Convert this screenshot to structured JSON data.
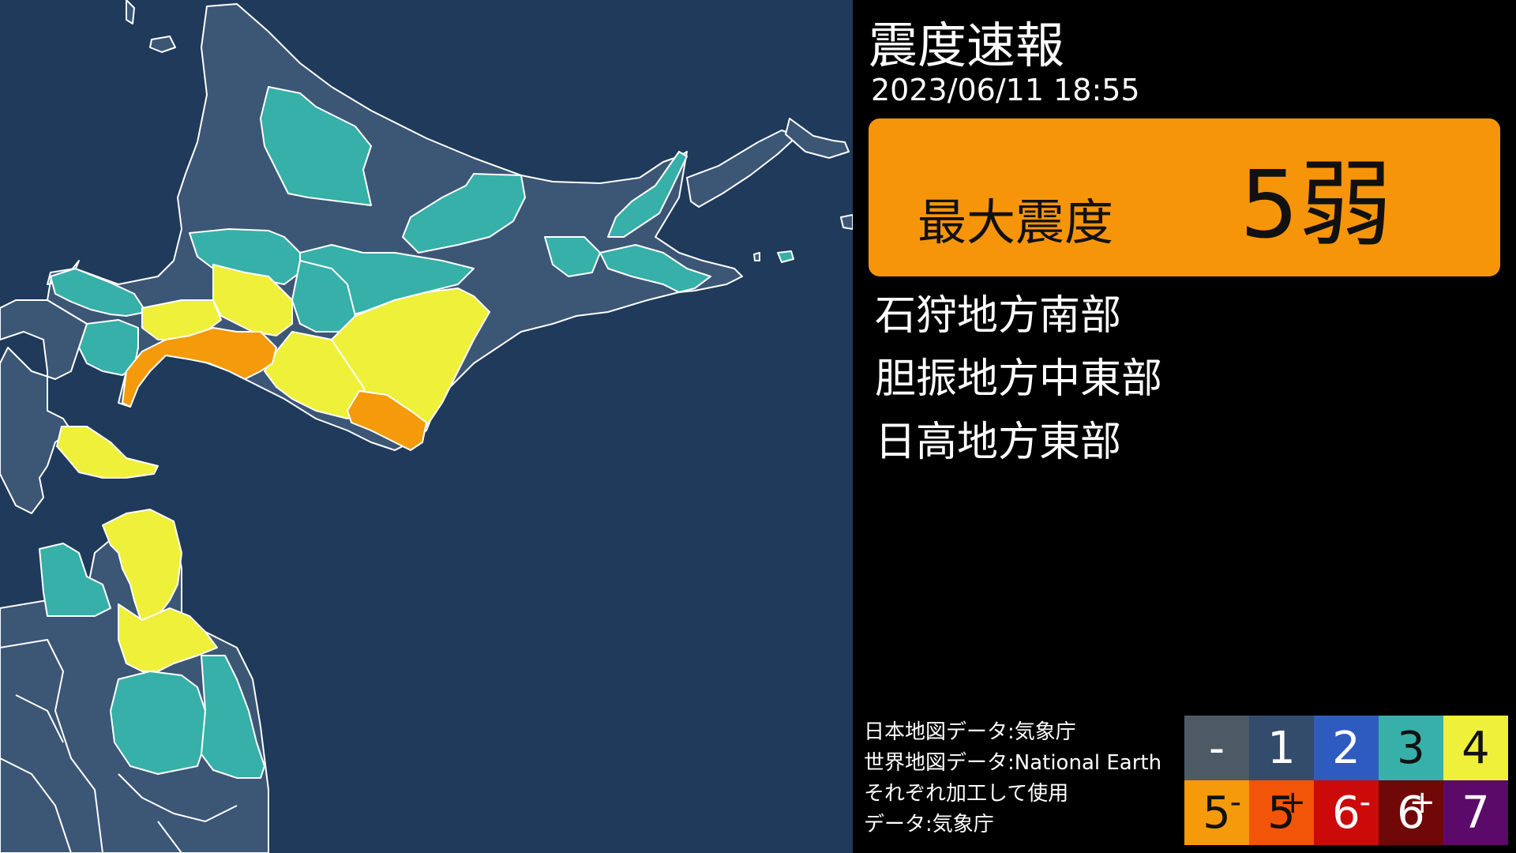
{
  "header": {
    "title": "震度速報",
    "datetime": "2023/06/11 18:55"
  },
  "max_intensity": {
    "label": "最大震度",
    "value": "5弱",
    "color": "#f7950a"
  },
  "regions": [
    {
      "name": "石狩地方南部"
    },
    {
      "name": "胆振地方中東部"
    },
    {
      "name": "日高地方東部"
    }
  ],
  "credits": [
    "日本地図データ:気象庁",
    "世界地図データ:National Earth",
    "それぞれ加工して使用",
    "データ:気象庁"
  ],
  "legend": [
    {
      "label": "-",
      "sup": "",
      "bg": "#4d5a66",
      "fg": "#ffffff"
    },
    {
      "label": "1",
      "sup": "",
      "bg": "#344c6b",
      "fg": "#ffffff"
    },
    {
      "label": "2",
      "sup": "",
      "bg": "#2e5bbf",
      "fg": "#ffffff"
    },
    {
      "label": "3",
      "sup": "",
      "bg": "#36b0a8",
      "fg": "#111111"
    },
    {
      "label": "4",
      "sup": "",
      "bg": "#eef03a",
      "fg": "#111111"
    },
    {
      "label": "5",
      "sup": "-",
      "bg": "#f59a0a",
      "fg": "#111111"
    },
    {
      "label": "5",
      "sup": "+",
      "bg": "#f25508",
      "fg": "#111111"
    },
    {
      "label": "6",
      "sup": "-",
      "bg": "#cc0a0a",
      "fg": "#ffffff"
    },
    {
      "label": "6",
      "sup": "+",
      "bg": "#700808",
      "fg": "#ffffff"
    },
    {
      "label": "7",
      "sup": "",
      "bg": "#5c0a6a",
      "fg": "#ffffff"
    }
  ],
  "map_colors": {
    "sea": "#1f3a5a",
    "land": "#3c5676",
    "border": "#ffffff"
  }
}
